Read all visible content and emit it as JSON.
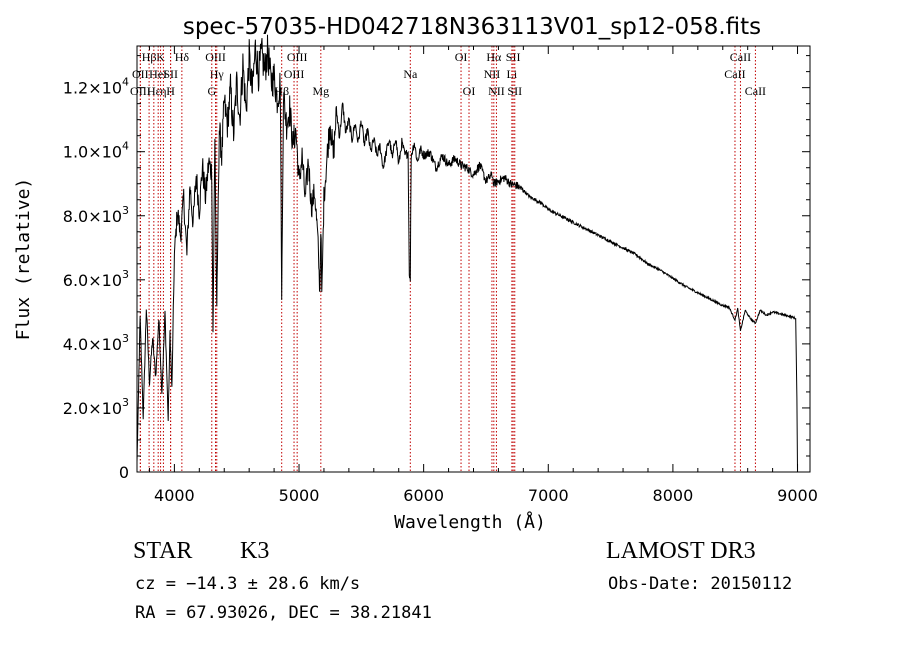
{
  "chart_data": {
    "type": "line",
    "title": "spec-57035-HD042718N363113V01_sp12-058.fits",
    "xlabel": "Wavelength (Å)",
    "ylabel": "Flux (relative)",
    "xlim": [
      3700,
      9100
    ],
    "ylim": [
      0,
      13300
    ],
    "x_ticks": [
      4000,
      5000,
      6000,
      7000,
      8000,
      9000
    ],
    "y_ticks": [
      {
        "value": 0,
        "mant": "0",
        "exp": ""
      },
      {
        "value": 2000,
        "mant": "2.0×10",
        "exp": "3"
      },
      {
        "value": 4000,
        "mant": "4.0×10",
        "exp": "3"
      },
      {
        "value": 6000,
        "mant": "6.0×10",
        "exp": "3"
      },
      {
        "value": 8000,
        "mant": "8.0×10",
        "exp": "3"
      },
      {
        "value": 10000,
        "mant": "1.0×10",
        "exp": "4"
      },
      {
        "value": 12000,
        "mant": "1.2×10",
        "exp": "4"
      }
    ],
    "grid": false,
    "series": [
      {
        "color": "#000000",
        "x": [
          3700,
          3725,
          3750,
          3775,
          3800,
          3825,
          3850,
          3875,
          3900,
          3925,
          3950,
          3965,
          3980,
          4000,
          4025,
          4050,
          4075,
          4100,
          4125,
          4150,
          4175,
          4200,
          4225,
          4250,
          4275,
          4300,
          4310,
          4325,
          4340,
          4360,
          4380,
          4400,
          4425,
          4450,
          4475,
          4500,
          4525,
          4550,
          4575,
          4600,
          4625,
          4650,
          4675,
          4700,
          4725,
          4750,
          4775,
          4800,
          4825,
          4850,
          4861,
          4875,
          4900,
          4925,
          4950,
          4975,
          5000,
          5025,
          5050,
          5075,
          5100,
          5125,
          5150,
          5167,
          5175,
          5183,
          5200,
          5225,
          5250,
          5275,
          5300,
          5325,
          5350,
          5375,
          5400,
          5425,
          5450,
          5475,
          5500,
          5525,
          5550,
          5575,
          5600,
          5625,
          5650,
          5675,
          5700,
          5725,
          5750,
          5775,
          5800,
          5825,
          5850,
          5875,
          5885,
          5893,
          5900,
          5925,
          5950,
          5975,
          6000,
          6050,
          6100,
          6150,
          6200,
          6250,
          6300,
          6350,
          6400,
          6450,
          6500,
          6550,
          6563,
          6600,
          6650,
          6700,
          6750,
          6800,
          6850,
          6900,
          6950,
          7000,
          7100,
          7200,
          7300,
          7400,
          7500,
          7600,
          7700,
          7800,
          7900,
          8000,
          8100,
          8200,
          8300,
          8400,
          8450,
          8498,
          8520,
          8542,
          8580,
          8620,
          8662,
          8700,
          8750,
          8800,
          8850,
          8900,
          8950,
          8985,
          8995,
          9000
        ],
        "values": [
          300,
          4800,
          1700,
          5200,
          2800,
          4200,
          3000,
          4800,
          2500,
          5000,
          1600,
          4400,
          2600,
          6800,
          8200,
          7400,
          8600,
          6800,
          9000,
          7800,
          9300,
          8200,
          9600,
          8600,
          9700,
          9400,
          4400,
          10600,
          5000,
          10800,
          9900,
          11600,
          10900,
          12000,
          10600,
          12200,
          11100,
          12800,
          11300,
          13000,
          11900,
          13300,
          12500,
          13100,
          12600,
          13200,
          12200,
          12400,
          11700,
          12200,
          5300,
          11800,
          10900,
          11400,
          10300,
          10700,
          9100,
          9900,
          8500,
          9800,
          8300,
          8800,
          7400,
          5600,
          7800,
          5500,
          8600,
          9900,
          11000,
          9900,
          11300,
          10500,
          11500,
          10600,
          11000,
          10400,
          10900,
          10300,
          11000,
          10200,
          10700,
          10000,
          10400,
          9900,
          10200,
          9500,
          10000,
          10400,
          9800,
          10500,
          9600,
          10300,
          9900,
          10000,
          6200,
          6000,
          9900,
          10300,
          9700,
          10100,
          9900,
          10000,
          9500,
          9900,
          9600,
          9800,
          9600,
          9500,
          9300,
          9600,
          9100,
          9300,
          9000,
          9100,
          9200,
          9000,
          8950,
          8800,
          8600,
          8500,
          8380,
          8200,
          8000,
          7800,
          7600,
          7400,
          7200,
          7000,
          6800,
          6500,
          6300,
          6050,
          5800,
          5600,
          5400,
          5200,
          5150,
          4750,
          5100,
          4400,
          5050,
          4800,
          4650,
          5050,
          4900,
          5000,
          4950,
          4900,
          4850,
          4800,
          2300,
          0
        ]
      }
    ],
    "lines": [
      {
        "name": "Hβ",
        "x": 3797,
        "row": 1
      },
      {
        "name": "OII",
        "x": 3727,
        "row": 2
      },
      {
        "name": "OIII",
        "x": 3727,
        "row": 3
      },
      {
        "name": "Hε",
        "x": 3835,
        "row": 3
      },
      {
        "name": "K",
        "x": 3889,
        "row": 1
      },
      {
        "name": "HeI",
        "x": 3870,
        "row": 2
      },
      {
        "name": "η",
        "x": 3912,
        "row": 3
      },
      {
        "name": "Hδ",
        "x": 4060,
        "row": 1
      },
      {
        "name": "SII",
        "x": 3970,
        "row": 2
      },
      {
        "name": "H",
        "x": 3969,
        "row": 3
      },
      {
        "name": "OIII",
        "x": 4330,
        "row": 1
      },
      {
        "name": "Hγ",
        "x": 4340,
        "row": 2
      },
      {
        "name": "G",
        "x": 4300,
        "row": 3
      },
      {
        "name": "OIII",
        "x": 4985,
        "row": 1
      },
      {
        "name": "OIII",
        "x": 4960,
        "row": 2
      },
      {
        "name": "Hβ",
        "x": 4861,
        "row": 3
      },
      {
        "name": "Mg",
        "x": 5175,
        "row": 3
      },
      {
        "name": "Na",
        "x": 5893,
        "row": 2
      },
      {
        "name": "OI",
        "x": 6300,
        "row": 1
      },
      {
        "name": "OI",
        "x": 6364,
        "row": 3
      },
      {
        "name": "Hα",
        "x": 6563,
        "row": 1
      },
      {
        "name": "SII",
        "x": 6718,
        "row": 1
      },
      {
        "name": "NII",
        "x": 6548,
        "row": 2
      },
      {
        "name": "Li",
        "x": 6708,
        "row": 2
      },
      {
        "name": "NII",
        "x": 6584,
        "row": 3
      },
      {
        "name": "SII",
        "x": 6731,
        "row": 3
      },
      {
        "name": "CaII",
        "x": 8542,
        "row": 1
      },
      {
        "name": "CaII",
        "x": 8498,
        "row": 2
      },
      {
        "name": "CaII",
        "x": 8662,
        "row": 3
      }
    ]
  },
  "info": {
    "obj_type": "STAR",
    "subclass": "K3",
    "cz": "cz = −14.3 ± 28.6 km/s",
    "radec": "RA =  67.93026, DEC =  38.21841",
    "survey": "LAMOST DR3",
    "obs_date": "Obs-Date: 20150112"
  }
}
